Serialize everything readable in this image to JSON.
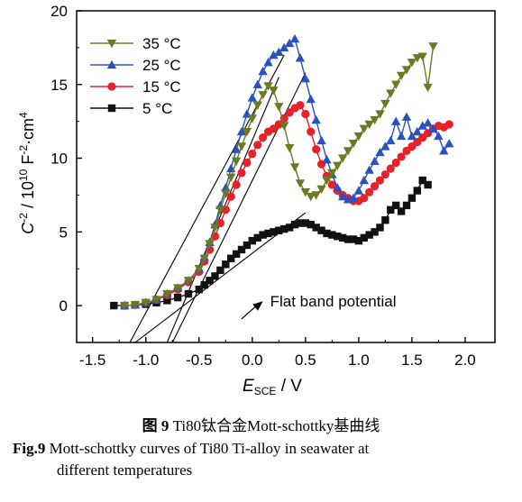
{
  "chart_data": {
    "type": "line",
    "x_label_main": "E",
    "x_label_sub": "SCE",
    "x_label_unit": " / V",
    "y_label_main": "C",
    "y_label_sup1": "-2",
    "y_label_mid": " / 10",
    "y_label_sup2": "10",
    "y_label_unit": " F",
    "y_label_sup3": "-2",
    "y_label_cm": "·cm",
    "y_label_sup4": "4",
    "xlim": [
      -1.65,
      2.28
    ],
    "ylim": [
      -2.5,
      20
    ],
    "x_ticks": [
      -1.5,
      -1.0,
      -0.5,
      0.0,
      0.5,
      1.0,
      1.5,
      2.0
    ],
    "x_tick_labels": [
      "-1.5",
      "-1.0",
      "-0.5",
      "0.0",
      "0.5",
      "1.0",
      "1.5",
      "2.0"
    ],
    "y_ticks": [
      0,
      5,
      10,
      15,
      20
    ],
    "y_tick_labels": [
      "0",
      "5",
      "10",
      "15",
      "20"
    ],
    "grid": false,
    "legend_position": "top-left",
    "annotation": "Flat band potential",
    "series": [
      {
        "name": "35 °C",
        "color": "#6b7a22",
        "marker": "triangle-down",
        "x": [
          -1.2,
          -1.1,
          -1.0,
          -0.9,
          -0.8,
          -0.7,
          -0.6,
          -0.5,
          -0.45,
          -0.4,
          -0.35,
          -0.3,
          -0.25,
          -0.2,
          -0.15,
          -0.1,
          -0.05,
          0.0,
          0.05,
          0.1,
          0.15,
          0.2,
          0.25,
          0.3,
          0.35,
          0.4,
          0.45,
          0.5,
          0.55,
          0.6,
          0.65,
          0.7,
          0.75,
          0.8,
          0.85,
          0.9,
          0.95,
          1.0,
          1.05,
          1.1,
          1.15,
          1.2,
          1.25,
          1.3,
          1.35,
          1.4,
          1.45,
          1.5,
          1.55,
          1.6,
          1.65,
          1.7
        ],
        "y": [
          0.0,
          0.05,
          0.2,
          0.4,
          0.8,
          1.2,
          1.7,
          2.5,
          3.2,
          4.2,
          5.3,
          6.5,
          7.6,
          8.7,
          9.8,
          10.8,
          11.8,
          12.7,
          13.6,
          14.3,
          14.9,
          14.6,
          13.5,
          12.2,
          10.7,
          9.4,
          8.3,
          7.7,
          7.4,
          7.5,
          7.9,
          8.5,
          9.0,
          9.5,
          10.0,
          10.5,
          11.0,
          11.5,
          12.0,
          12.3,
          12.6,
          13.0,
          13.7,
          14.4,
          15.0,
          15.6,
          16.0,
          16.5,
          16.8,
          16.9,
          14.8,
          17.6
        ]
      },
      {
        "name": "25 °C",
        "color": "#2a52be",
        "marker": "triangle-up",
        "x": [
          -1.2,
          -1.1,
          -1.0,
          -0.9,
          -0.8,
          -0.7,
          -0.6,
          -0.5,
          -0.45,
          -0.4,
          -0.35,
          -0.3,
          -0.25,
          -0.2,
          -0.15,
          -0.1,
          -0.05,
          0.0,
          0.05,
          0.1,
          0.15,
          0.2,
          0.25,
          0.3,
          0.35,
          0.4,
          0.45,
          0.5,
          0.55,
          0.6,
          0.65,
          0.7,
          0.75,
          0.8,
          0.85,
          0.9,
          0.95,
          1.0,
          1.05,
          1.1,
          1.15,
          1.2,
          1.25,
          1.3,
          1.35,
          1.4,
          1.45,
          1.5,
          1.55,
          1.6,
          1.65,
          1.7,
          1.75,
          1.8,
          1.85
        ],
        "y": [
          0.0,
          0.05,
          0.2,
          0.4,
          0.8,
          1.2,
          1.7,
          2.5,
          3.3,
          4.3,
          5.5,
          6.8,
          8.0,
          9.3,
          10.6,
          11.8,
          13.0,
          14.1,
          15.0,
          15.9,
          16.5,
          17.0,
          17.2,
          17.5,
          17.8,
          18.1,
          16.8,
          15.4,
          14.0,
          12.6,
          11.2,
          9.9,
          8.9,
          8.0,
          7.4,
          7.2,
          7.3,
          7.8,
          8.5,
          9.2,
          9.8,
          10.4,
          10.8,
          11.2,
          12.5,
          11.5,
          12.8,
          11.5,
          11.8,
          12.2,
          12.4,
          12.0,
          11.5,
          10.5,
          11.0
        ]
      },
      {
        "name": "15 °C",
        "color": "#e8202a",
        "marker": "circle",
        "x": [
          -1.2,
          -1.1,
          -1.0,
          -0.9,
          -0.8,
          -0.7,
          -0.6,
          -0.5,
          -0.45,
          -0.4,
          -0.35,
          -0.3,
          -0.25,
          -0.2,
          -0.15,
          -0.1,
          -0.05,
          0.0,
          0.05,
          0.1,
          0.15,
          0.2,
          0.25,
          0.3,
          0.35,
          0.4,
          0.45,
          0.5,
          0.55,
          0.6,
          0.65,
          0.7,
          0.75,
          0.8,
          0.85,
          0.9,
          0.95,
          1.0,
          1.05,
          1.1,
          1.15,
          1.2,
          1.25,
          1.3,
          1.35,
          1.4,
          1.45,
          1.5,
          1.55,
          1.6,
          1.65,
          1.7,
          1.75,
          1.8,
          1.85
        ],
        "y": [
          0.0,
          0.05,
          0.2,
          0.4,
          0.7,
          1.1,
          1.6,
          2.3,
          3.0,
          3.8,
          4.7,
          5.6,
          6.5,
          7.4,
          8.2,
          9.0,
          9.7,
          10.3,
          10.9,
          11.4,
          11.8,
          12.0,
          12.3,
          12.7,
          13.1,
          13.4,
          13.6,
          13.0,
          11.8,
          10.6,
          9.6,
          8.8,
          8.2,
          7.8,
          7.5,
          7.3,
          7.1,
          7.1,
          7.3,
          7.7,
          8.1,
          8.5,
          8.9,
          9.3,
          9.7,
          10.1,
          10.5,
          10.8,
          11.1,
          11.4,
          11.7,
          12.0,
          12.2,
          12.1,
          12.3
        ]
      },
      {
        "name": "5 °C",
        "color": "#111111",
        "marker": "square",
        "x": [
          -1.3,
          -1.2,
          -1.1,
          -1.0,
          -0.9,
          -0.8,
          -0.7,
          -0.6,
          -0.5,
          -0.45,
          -0.4,
          -0.35,
          -0.3,
          -0.25,
          -0.2,
          -0.15,
          -0.1,
          -0.05,
          0.0,
          0.05,
          0.1,
          0.15,
          0.2,
          0.25,
          0.3,
          0.35,
          0.4,
          0.45,
          0.5,
          0.55,
          0.6,
          0.65,
          0.7,
          0.75,
          0.8,
          0.85,
          0.9,
          0.95,
          1.0,
          1.05,
          1.1,
          1.15,
          1.2,
          1.25,
          1.3,
          1.35,
          1.4,
          1.45,
          1.5,
          1.55,
          1.6,
          1.65
        ],
        "y": [
          0.0,
          0.0,
          0.05,
          0.1,
          0.2,
          0.35,
          0.55,
          0.8,
          1.1,
          1.4,
          1.7,
          2.0,
          2.4,
          2.8,
          3.2,
          3.5,
          3.8,
          4.1,
          4.4,
          4.6,
          4.8,
          4.9,
          5.0,
          5.1,
          5.2,
          5.3,
          5.5,
          5.6,
          5.6,
          5.5,
          5.3,
          5.1,
          4.9,
          4.8,
          4.7,
          4.6,
          4.5,
          4.5,
          4.4,
          4.6,
          4.8,
          5.0,
          5.3,
          5.8,
          6.5,
          6.8,
          6.4,
          6.8,
          7.3,
          7.8,
          8.5,
          8.2
        ]
      }
    ],
    "tangent_lines": [
      {
        "x": [
          -1.15,
          0.3
        ],
        "y": [
          -2.5,
          17.0
        ]
      },
      {
        "x": [
          -0.8,
          0.25
        ],
        "y": [
          -2.5,
          15.5
        ]
      },
      {
        "x": [
          -0.75,
          0.5
        ],
        "y": [
          -2.5,
          15.8
        ]
      },
      {
        "x": [
          -1.1,
          0.5
        ],
        "y": [
          -2.5,
          6.3
        ]
      }
    ],
    "arrow": {
      "x": [
        -0.1,
        0.1
      ],
      "y": [
        -0.9,
        0.3
      ]
    }
  },
  "caption": {
    "zh_label": "图 9",
    "zh_text": "Ti80钛合金Mott-schottky基曲线",
    "en_label": "Fig.9",
    "en_text_1": "Mott-schottky curves of Ti80 Ti-alloy in seawater at",
    "en_text_2": "different temperatures"
  }
}
